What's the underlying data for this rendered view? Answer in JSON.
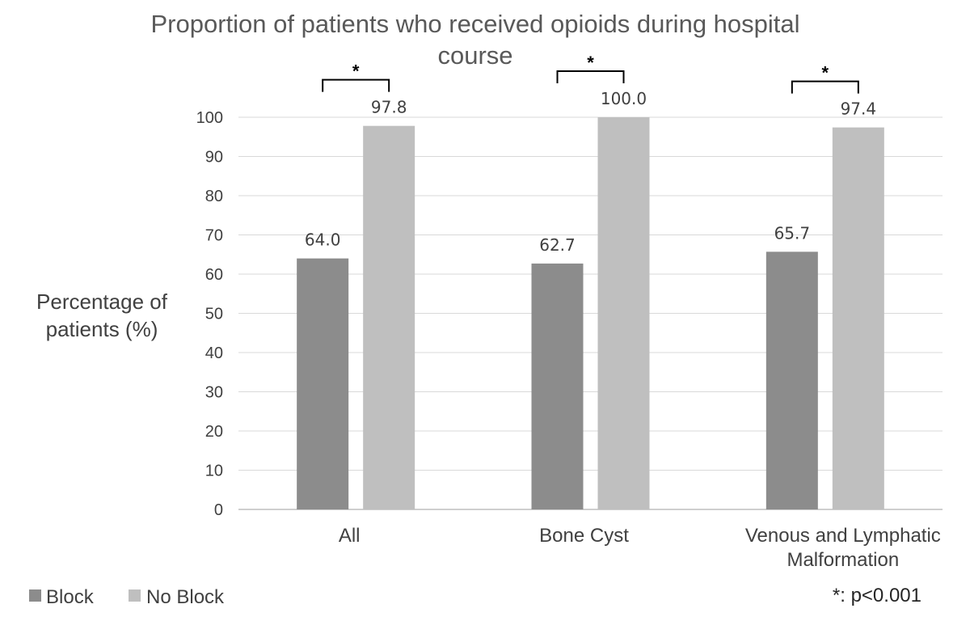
{
  "chart_data": {
    "type": "bar",
    "title_lines": [
      "Proportion of patients who received opioids during hospital",
      "course"
    ],
    "ylabel_lines": [
      "Percentage of",
      "patients (%)"
    ],
    "xlabel": "",
    "ylim": [
      0,
      100
    ],
    "yticks": [
      0,
      10,
      20,
      30,
      40,
      50,
      60,
      70,
      80,
      90,
      100
    ],
    "grid": true,
    "categories": [
      {
        "lines": [
          "All"
        ]
      },
      {
        "lines": [
          "Bone Cyst"
        ]
      },
      {
        "lines": [
          "Venous and Lymphatic",
          "Malformation"
        ]
      }
    ],
    "series": [
      {
        "name": "Block",
        "color": "#8c8c8c",
        "values": [
          64.0,
          62.7,
          65.7
        ],
        "labels": [
          "64.0",
          "62.7",
          "65.7"
        ]
      },
      {
        "name": "No Block",
        "color": "#bfbfbf",
        "values": [
          97.8,
          100.0,
          97.4
        ],
        "labels": [
          "97.8",
          "100.0",
          "97.4"
        ]
      }
    ],
    "significance": [
      {
        "category": 0,
        "marker": "*"
      },
      {
        "category": 1,
        "marker": "*"
      },
      {
        "category": 2,
        "marker": "*"
      }
    ],
    "legend_position": "bottom-left",
    "footnote": "*: p<0.001"
  }
}
